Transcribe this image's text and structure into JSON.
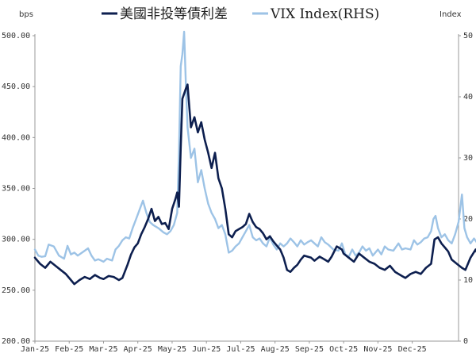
{
  "chart_data": {
    "type": "line",
    "left_unit": "bps",
    "right_unit": "Index",
    "y_left_ticks": [
      "200.00",
      "250.00",
      "300.00",
      "350.00",
      "400.00",
      "450.00",
      "500.00"
    ],
    "y_left_range": [
      200,
      500
    ],
    "y_right_ticks": [
      "0",
      "10",
      "20",
      "30",
      "40",
      "50"
    ],
    "y_right_range": [
      0,
      50
    ],
    "x_ticks": [
      "Jan-25",
      "Feb-25",
      "Mar-25",
      "Apr-25",
      "May-25",
      "Jun-25",
      "Jul-25",
      "Aug-25",
      "Sep-25",
      "Oct-25",
      "Nov-25",
      "Dec-25"
    ],
    "legend_position": "top",
    "grid": false,
    "series": [
      {
        "name": "美國非投等債利差",
        "axis": "left",
        "color": "#0d1f4f",
        "points": [
          [
            0.0,
            282
          ],
          [
            0.15,
            276
          ],
          [
            0.3,
            272
          ],
          [
            0.45,
            278
          ],
          [
            0.6,
            274
          ],
          [
            0.75,
            270
          ],
          [
            0.9,
            266
          ],
          [
            1.0,
            262
          ],
          [
            1.15,
            256
          ],
          [
            1.3,
            260
          ],
          [
            1.45,
            263
          ],
          [
            1.6,
            261
          ],
          [
            1.75,
            265
          ],
          [
            1.9,
            262
          ],
          [
            2.0,
            261
          ],
          [
            2.15,
            264
          ],
          [
            2.3,
            263
          ],
          [
            2.45,
            260
          ],
          [
            2.55,
            262
          ],
          [
            2.7,
            275
          ],
          [
            2.8,
            285
          ],
          [
            2.9,
            292
          ],
          [
            3.0,
            296
          ],
          [
            3.1,
            305
          ],
          [
            3.2,
            312
          ],
          [
            3.3,
            320
          ],
          [
            3.4,
            330
          ],
          [
            3.5,
            318
          ],
          [
            3.6,
            322
          ],
          [
            3.7,
            315
          ],
          [
            3.8,
            316
          ],
          [
            3.9,
            310
          ],
          [
            4.0,
            330
          ],
          [
            4.1,
            340
          ],
          [
            4.15,
            346
          ],
          [
            4.2,
            332
          ],
          [
            4.25,
            390
          ],
          [
            4.3,
            438
          ],
          [
            4.4,
            448
          ],
          [
            4.45,
            452
          ],
          [
            4.5,
            430
          ],
          [
            4.55,
            410
          ],
          [
            4.65,
            420
          ],
          [
            4.75,
            405
          ],
          [
            4.85,
            415
          ],
          [
            4.95,
            398
          ],
          [
            5.05,
            385
          ],
          [
            5.15,
            370
          ],
          [
            5.25,
            385
          ],
          [
            5.35,
            360
          ],
          [
            5.45,
            350
          ],
          [
            5.55,
            330
          ],
          [
            5.6,
            318
          ],
          [
            5.65,
            305
          ],
          [
            5.75,
            302
          ],
          [
            5.85,
            308
          ],
          [
            5.95,
            310
          ],
          [
            6.05,
            312
          ],
          [
            6.15,
            315
          ],
          [
            6.25,
            325
          ],
          [
            6.35,
            317
          ],
          [
            6.45,
            312
          ],
          [
            6.55,
            310
          ],
          [
            6.65,
            306
          ],
          [
            6.75,
            300
          ],
          [
            6.85,
            303
          ],
          [
            6.95,
            298
          ],
          [
            7.05,
            294
          ],
          [
            7.15,
            290
          ],
          [
            7.25,
            282
          ],
          [
            7.35,
            270
          ],
          [
            7.45,
            268
          ],
          [
            7.55,
            272
          ],
          [
            7.65,
            275
          ],
          [
            7.75,
            280
          ],
          [
            7.85,
            284
          ],
          [
            7.95,
            283
          ],
          [
            8.05,
            282
          ],
          [
            8.15,
            279
          ],
          [
            8.3,
            283
          ],
          [
            8.45,
            280
          ],
          [
            8.55,
            278
          ],
          [
            8.65,
            283
          ],
          [
            8.8,
            293
          ],
          [
            8.95,
            290
          ],
          [
            9.0,
            286
          ],
          [
            9.15,
            282
          ],
          [
            9.3,
            278
          ],
          [
            9.45,
            286
          ],
          [
            9.6,
            282
          ],
          [
            9.75,
            278
          ],
          [
            9.9,
            276
          ],
          [
            10.05,
            272
          ],
          [
            10.2,
            270
          ],
          [
            10.35,
            274
          ],
          [
            10.5,
            268
          ],
          [
            10.65,
            265
          ],
          [
            10.8,
            262
          ],
          [
            10.95,
            266
          ],
          [
            11.1,
            268
          ],
          [
            11.25,
            266
          ],
          [
            11.4,
            272
          ],
          [
            11.55,
            276
          ],
          [
            11.65,
            300
          ],
          [
            11.75,
            302
          ],
          [
            11.85,
            296
          ],
          [
            11.95,
            292
          ],
          [
            12.05,
            288
          ],
          [
            12.15,
            280
          ],
          [
            12.3,
            276
          ],
          [
            12.45,
            272
          ],
          [
            12.55,
            270
          ],
          [
            12.7,
            282
          ],
          [
            12.85,
            290
          ],
          [
            12.95,
            282
          ],
          [
            13.05,
            294
          ],
          [
            13.15,
            300
          ],
          [
            13.25,
            290
          ],
          [
            13.35,
            280
          ],
          [
            13.5,
            283
          ],
          [
            13.65,
            282
          ],
          [
            13.75,
            290
          ],
          [
            13.85,
            298
          ],
          [
            13.95,
            300
          ],
          [
            14.05,
            296
          ],
          [
            14.15,
            292
          ],
          [
            14.25,
            282
          ],
          [
            14.35,
            275
          ],
          [
            14.45,
            270
          ],
          [
            14.55,
            268
          ],
          [
            14.65,
            274
          ],
          [
            14.75,
            270
          ],
          [
            14.85,
            278
          ],
          [
            14.95,
            278
          ],
          [
            15.05,
            282
          ],
          [
            15.15,
            275
          ],
          [
            15.25,
            272
          ],
          [
            15.35,
            270
          ]
        ]
      },
      {
        "name": "VIX Index(RHS)",
        "axis": "right",
        "color": "#9dc3e6",
        "points": [
          [
            0.0,
            15.0
          ],
          [
            0.1,
            14.0
          ],
          [
            0.2,
            13.8
          ],
          [
            0.3,
            13.9
          ],
          [
            0.4,
            15.8
          ],
          [
            0.55,
            15.5
          ],
          [
            0.7,
            14.0
          ],
          [
            0.85,
            13.5
          ],
          [
            0.95,
            15.6
          ],
          [
            1.05,
            14.2
          ],
          [
            1.15,
            14.5
          ],
          [
            1.25,
            14.0
          ],
          [
            1.4,
            14.6
          ],
          [
            1.55,
            15.2
          ],
          [
            1.65,
            14.0
          ],
          [
            1.75,
            13.2
          ],
          [
            1.85,
            13.4
          ],
          [
            2.0,
            13.0
          ],
          [
            2.1,
            13.5
          ],
          [
            2.25,
            13.2
          ],
          [
            2.35,
            15.0
          ],
          [
            2.45,
            15.6
          ],
          [
            2.55,
            16.5
          ],
          [
            2.65,
            17.0
          ],
          [
            2.75,
            16.8
          ],
          [
            2.85,
            18.5
          ],
          [
            2.95,
            20.0
          ],
          [
            3.05,
            21.5
          ],
          [
            3.15,
            23.0
          ],
          [
            3.25,
            21.0
          ],
          [
            3.35,
            19.5
          ],
          [
            3.45,
            19.0
          ],
          [
            3.6,
            18.5
          ],
          [
            3.75,
            17.8
          ],
          [
            3.85,
            17.5
          ],
          [
            3.95,
            18.0
          ],
          [
            4.05,
            19.0
          ],
          [
            4.15,
            21.0
          ],
          [
            4.2,
            31.0
          ],
          [
            4.25,
            45.0
          ],
          [
            4.3,
            47.0
          ],
          [
            4.35,
            52.0
          ],
          [
            4.4,
            42.0
          ],
          [
            4.45,
            35.0
          ],
          [
            4.55,
            30.0
          ],
          [
            4.65,
            31.5
          ],
          [
            4.75,
            26.0
          ],
          [
            4.85,
            28.0
          ],
          [
            4.95,
            25.0
          ],
          [
            5.05,
            22.5
          ],
          [
            5.15,
            21.0
          ],
          [
            5.25,
            20.0
          ],
          [
            5.35,
            18.5
          ],
          [
            5.45,
            19.0
          ],
          [
            5.55,
            17.5
          ],
          [
            5.65,
            14.5
          ],
          [
            5.75,
            14.8
          ],
          [
            5.85,
            15.5
          ],
          [
            5.95,
            16.0
          ],
          [
            6.05,
            17.0
          ],
          [
            6.15,
            18.0
          ],
          [
            6.25,
            19.0
          ],
          [
            6.35,
            17.0
          ],
          [
            6.45,
            16.5
          ],
          [
            6.55,
            16.8
          ],
          [
            6.65,
            16.0
          ],
          [
            6.75,
            15.5
          ],
          [
            6.85,
            17.0
          ],
          [
            6.95,
            15.8
          ],
          [
            7.05,
            15.0
          ],
          [
            7.15,
            16.0
          ],
          [
            7.25,
            15.5
          ],
          [
            7.35,
            16.0
          ],
          [
            7.45,
            16.8
          ],
          [
            7.55,
            16.2
          ],
          [
            7.65,
            15.5
          ],
          [
            7.75,
            16.5
          ],
          [
            7.85,
            15.8
          ],
          [
            7.95,
            16.2
          ],
          [
            8.05,
            16.5
          ],
          [
            8.15,
            16.0
          ],
          [
            8.25,
            15.5
          ],
          [
            8.35,
            17.0
          ],
          [
            8.45,
            16.2
          ],
          [
            8.55,
            15.8
          ],
          [
            8.7,
            15.0
          ],
          [
            8.85,
            14.8
          ],
          [
            8.95,
            16.0
          ],
          [
            9.05,
            14.2
          ],
          [
            9.15,
            13.8
          ],
          [
            9.25,
            15.0
          ],
          [
            9.35,
            14.0
          ],
          [
            9.45,
            14.5
          ],
          [
            9.55,
            15.5
          ],
          [
            9.65,
            14.8
          ],
          [
            9.75,
            15.2
          ],
          [
            9.85,
            14.0
          ],
          [
            10.0,
            15.0
          ],
          [
            10.1,
            14.2
          ],
          [
            10.2,
            15.5
          ],
          [
            10.3,
            15.0
          ],
          [
            10.45,
            14.8
          ],
          [
            10.6,
            16.0
          ],
          [
            10.7,
            15.0
          ],
          [
            10.8,
            15.2
          ],
          [
            10.95,
            15.0
          ],
          [
            11.05,
            16.5
          ],
          [
            11.15,
            15.8
          ],
          [
            11.25,
            16.2
          ],
          [
            11.35,
            16.8
          ],
          [
            11.45,
            17.0
          ],
          [
            11.55,
            18.0
          ],
          [
            11.62,
            20.0
          ],
          [
            11.68,
            20.5
          ],
          [
            11.75,
            18.5
          ],
          [
            11.85,
            17.0
          ],
          [
            11.95,
            17.5
          ],
          [
            12.05,
            16.5
          ],
          [
            12.15,
            16.0
          ],
          [
            12.25,
            17.5
          ],
          [
            12.35,
            19.5
          ],
          [
            12.45,
            24.0
          ],
          [
            12.52,
            18.5
          ],
          [
            12.6,
            17.0
          ],
          [
            12.7,
            16.0
          ],
          [
            12.8,
            16.8
          ],
          [
            12.9,
            16.0
          ],
          [
            13.0,
            15.5
          ],
          [
            13.1,
            15.8
          ],
          [
            13.2,
            16.5
          ],
          [
            13.3,
            17.0
          ],
          [
            13.4,
            17.5
          ],
          [
            13.5,
            18.0
          ],
          [
            13.6,
            19.0
          ],
          [
            13.7,
            21.5
          ],
          [
            13.8,
            23.0
          ],
          [
            13.85,
            24.5
          ],
          [
            13.92,
            26.0
          ],
          [
            13.98,
            20.0
          ],
          [
            14.05,
            19.0
          ],
          [
            14.15,
            18.0
          ],
          [
            14.25,
            17.0
          ],
          [
            14.35,
            16.5
          ],
          [
            14.45,
            17.5
          ],
          [
            14.55,
            16.5
          ],
          [
            14.65,
            16.0
          ],
          [
            14.75,
            15.0
          ],
          [
            14.85,
            16.0
          ],
          [
            14.95,
            15.5
          ],
          [
            15.05,
            17.0
          ],
          [
            15.15,
            15.0
          ],
          [
            15.25,
            14.6
          ],
          [
            15.35,
            14.4
          ]
        ]
      }
    ]
  }
}
